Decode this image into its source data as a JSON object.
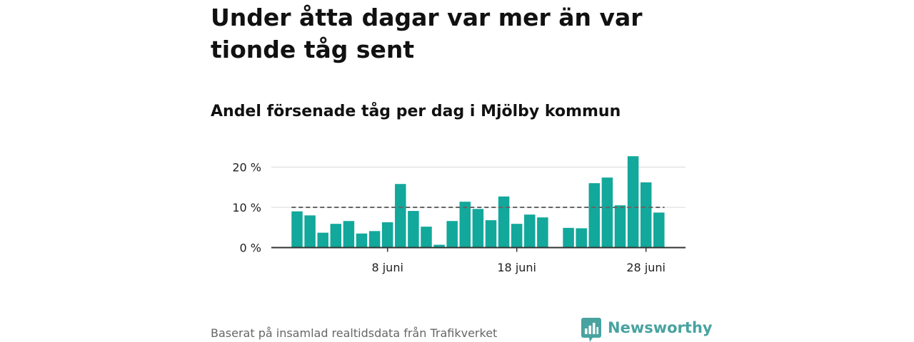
{
  "headline": "Under åtta dagar var mer än var tionde tåg sent",
  "subtitle": "Andel försenade tåg per dag i Mjölby kommun",
  "footer": {
    "source": "Baserat på insamlad realtidsdata från Trafikverket",
    "brand": "Newsworthy"
  },
  "colors": {
    "bar": "#12a89b",
    "reference_line": "#666666",
    "gridline": "#d9d9d9",
    "axis": "#333333",
    "brand": "#48a3a0"
  },
  "chart_data": {
    "type": "bar",
    "title": "",
    "xlabel": "",
    "ylabel": "",
    "unit": "%",
    "x_start_day": 1,
    "month": "juni",
    "days": [
      1,
      2,
      3,
      4,
      5,
      6,
      7,
      8,
      9,
      10,
      11,
      12,
      13,
      14,
      15,
      16,
      17,
      18,
      19,
      20,
      21,
      22,
      23,
      24,
      25,
      26,
      27,
      28,
      29,
      30
    ],
    "values": [
      9.0,
      8.0,
      3.7,
      5.9,
      6.6,
      3.5,
      4.1,
      6.3,
      15.8,
      9.1,
      5.2,
      0.7,
      6.6,
      11.4,
      9.6,
      6.8,
      12.7,
      5.9,
      8.2,
      7.5,
      null,
      4.9,
      4.8,
      16.0,
      17.4,
      10.5,
      22.7,
      16.2,
      8.7,
      null
    ],
    "reference_line": 10,
    "ylim": [
      0,
      23
    ],
    "yticks": [
      {
        "value": 0,
        "label": "0 %"
      },
      {
        "value": 10,
        "label": "10 %"
      },
      {
        "value": 20,
        "label": "20 %"
      }
    ],
    "xticks": [
      {
        "day": 8,
        "label": "8 juni"
      },
      {
        "day": 18,
        "label": "18 juni"
      },
      {
        "day": 28,
        "label": "28 juni"
      }
    ],
    "grid": true,
    "legend": "none"
  }
}
